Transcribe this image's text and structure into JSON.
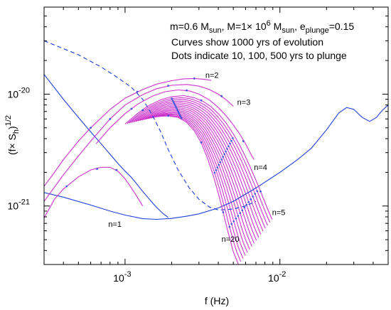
{
  "chart_data": {
    "type": "line",
    "scale": {
      "x": "log",
      "y": "log"
    },
    "xlim": [
      0.0003,
      0.05
    ],
    "ylim": [
      3e-22,
      6e-20
    ],
    "xlabel": "f (Hz)",
    "ylabel": "(f× S_h)^{1/2}",
    "x_ticks": [
      {
        "value": 0.001,
        "label": "10",
        "exponent": "-3"
      },
      {
        "value": 0.01,
        "label": "10",
        "exponent": "-2"
      }
    ],
    "y_ticks": [
      {
        "value": 1e-21,
        "label": "10",
        "exponent": "-21"
      },
      {
        "value": 1e-20,
        "label": "10",
        "exponent": "-20"
      }
    ],
    "annotations": [
      {
        "text": "m=0.6 M",
        "sub": "sun",
        "text2": ",  M=1× 10",
        "sup": "6",
        "text3": " M",
        "sub2": "sun",
        "text4": ",  e",
        "sub3": "plunge",
        "text5": "=0.15"
      },
      {
        "text": "Curves show 1000 yrs of evolution"
      },
      {
        "text": "Dots indicate 10, 100, 500 yrs to plunge"
      }
    ],
    "harmonic_labels": [
      {
        "text": "n=1",
        "x": 0.00078,
        "y": 6.5e-22
      },
      {
        "text": "n=2",
        "x": 0.0033,
        "y": 1.4e-20
      },
      {
        "text": "n=3",
        "x": 0.0053,
        "y": 8e-21
      },
      {
        "text": "n=4",
        "x": 0.0068,
        "y": 2.1e-21
      },
      {
        "text": "n=5",
        "x": 0.0089,
        "y": 8.3e-22
      },
      {
        "text": "n=20",
        "x": 0.0042,
        "y": 4.8e-22
      }
    ],
    "series": [
      {
        "role": "noise-total",
        "color": "#1f3fdc",
        "dash": "solid",
        "points": [
          [
            0.0003,
            1.32e-21
          ],
          [
            0.0004,
            1.2e-21
          ],
          [
            0.0006,
            1.02e-21
          ],
          [
            0.0008,
            9e-22
          ],
          [
            0.001,
            8.3e-22
          ],
          [
            0.0013,
            7.7e-22
          ],
          [
            0.0016,
            7.6e-22
          ],
          [
            0.002,
            7.75e-22
          ],
          [
            0.0025,
            8.1e-22
          ],
          [
            0.003,
            8.5e-22
          ],
          [
            0.004,
            9.6e-22
          ],
          [
            0.005,
            1.1e-21
          ],
          [
            0.007,
            1.45e-21
          ],
          [
            0.01,
            2e-21
          ],
          [
            0.013,
            2.6e-21
          ],
          [
            0.016,
            3.3e-21
          ],
          [
            0.02,
            4.8e-21
          ],
          [
            0.024,
            6.8e-21
          ],
          [
            0.027,
            7.6e-21
          ],
          [
            0.03,
            7.3e-21
          ],
          [
            0.034,
            6.2e-21
          ],
          [
            0.038,
            5.7e-21
          ],
          [
            0.042,
            6.2e-21
          ],
          [
            0.046,
            7.2e-21
          ],
          [
            0.05,
            8e-21
          ]
        ]
      },
      {
        "role": "noise-confusion",
        "color": "#1f3fdc",
        "dash": "solid",
        "points": [
          [
            0.0003,
            1.5e-20
          ],
          [
            0.0004,
            9e-21
          ],
          [
            0.0005,
            6.2e-21
          ],
          [
            0.0006,
            4.6e-21
          ],
          [
            0.0007,
            3.6e-21
          ],
          [
            0.0008,
            2.9e-21
          ],
          [
            0.0009,
            2.4e-21
          ],
          [
            0.001,
            2.05e-21
          ],
          [
            0.0011,
            1.8e-21
          ],
          [
            0.0012,
            1.55e-21
          ],
          [
            0.0013,
            1.35e-21
          ],
          [
            0.0014,
            1.2e-21
          ],
          [
            0.0015,
            1.07e-21
          ],
          [
            0.0016,
            9.7e-22
          ],
          [
            0.00175,
            8.6e-22
          ],
          [
            0.0019,
            7.9e-22
          ]
        ]
      },
      {
        "role": "noise-dashed",
        "color": "#1f3fdc",
        "dash": "dashed",
        "points": [
          [
            0.0003,
            3e-20
          ],
          [
            0.0005,
            2.25e-20
          ],
          [
            0.0007,
            1.75e-20
          ],
          [
            0.0009,
            1.4e-20
          ],
          [
            0.0011,
            1.15e-20
          ],
          [
            0.0013,
            9e-21
          ],
          [
            0.0015,
            6.5e-21
          ],
          [
            0.0017,
            4.6e-21
          ],
          [
            0.0019,
            3.2e-21
          ],
          [
            0.0022,
            2.1e-21
          ],
          [
            0.0026,
            1.45e-21
          ],
          [
            0.003,
            1.15e-21
          ],
          [
            0.0035,
            9.8e-22
          ],
          [
            0.004,
            9.2e-22
          ],
          [
            0.005,
            9.4e-22
          ],
          [
            0.006,
            1e-21
          ],
          [
            0.007,
            1.1e-21
          ]
        ]
      },
      {
        "role": "harmonic",
        "n": 1,
        "color": "#cc33cc",
        "dash": "solid",
        "points": [
          [
            0.0003,
            7.8e-22
          ],
          [
            0.00035,
            1.15e-21
          ],
          [
            0.0004,
            1.42e-21
          ],
          [
            0.0005,
            1.82e-21
          ],
          [
            0.0006,
            2.1e-21
          ],
          [
            0.0007,
            2.22e-21
          ],
          [
            0.0008,
            2.22e-21
          ],
          [
            0.0009,
            2.05e-21
          ],
          [
            0.001,
            1.75e-21
          ],
          [
            0.0011,
            1.45e-21
          ],
          [
            0.0012,
            1.2e-21
          ],
          [
            0.0013,
            1e-21
          ]
        ],
        "dots": [
          [
            0.00066,
            2.15e-21
          ],
          [
            0.00042,
            1.5e-21
          ],
          [
            0.00088,
            2.1e-21
          ]
        ]
      },
      {
        "role": "harmonic",
        "n": 2,
        "color": "#cc33cc",
        "dash": "solid",
        "points": [
          [
            0.0003,
            1.5e-21
          ],
          [
            0.00035,
            2e-21
          ],
          [
            0.0004,
            2.6e-21
          ],
          [
            0.0005,
            3.8e-21
          ],
          [
            0.0006,
            5e-21
          ],
          [
            0.0008,
            7.3e-21
          ],
          [
            0.001,
            9.2e-21
          ],
          [
            0.0013,
            1.1e-20
          ],
          [
            0.0016,
            1.23e-20
          ],
          [
            0.002,
            1.32e-20
          ],
          [
            0.0024,
            1.37e-20
          ],
          [
            0.0028,
            1.38e-20
          ],
          [
            0.0032,
            1.36e-20
          ],
          [
            0.0036,
            1.33e-20
          ]
        ],
        "dots": [
          [
            0.0006,
            5e-21
          ],
          [
            0.0012,
            1.05e-20
          ],
          [
            0.0028,
            1.38e-20
          ]
        ]
      },
      {
        "role": "harmonic",
        "n": 3,
        "color": "#cc33cc",
        "dash": "solid",
        "points": [
          [
            0.0003,
            1.1e-21
          ],
          [
            0.0004,
            1.9e-21
          ],
          [
            0.0005,
            2.8e-21
          ],
          [
            0.0006,
            3.8e-21
          ],
          [
            0.0008,
            6e-21
          ],
          [
            0.001,
            8e-21
          ],
          [
            0.0013,
            9.9e-21
          ],
          [
            0.0016,
            1.12e-20
          ],
          [
            0.002,
            1.2e-20
          ],
          [
            0.0025,
            1.22e-20
          ],
          [
            0.003,
            1.18e-20
          ],
          [
            0.0035,
            1.1e-20
          ],
          [
            0.004,
            1e-20
          ],
          [
            0.0045,
            8.9e-21
          ],
          [
            0.005,
            7.8e-21
          ]
        ],
        "dots": [
          [
            0.0008,
            6e-21
          ],
          [
            0.0019,
            1.19e-20
          ],
          [
            0.0042,
            9.6e-21
          ]
        ]
      },
      {
        "role": "harmonic",
        "n": 4,
        "color": "#cc33cc",
        "dash": "solid",
        "points": [
          [
            0.00065,
            3.6e-21
          ],
          [
            0.0008,
            5e-21
          ],
          [
            0.001,
            6.7e-21
          ],
          [
            0.0012,
            8.1e-21
          ],
          [
            0.0015,
            9.6e-21
          ],
          [
            0.0018,
            1.05e-20
          ],
          [
            0.0022,
            1.09e-20
          ],
          [
            0.0026,
            1.07e-20
          ],
          [
            0.003,
            1e-20
          ],
          [
            0.0035,
            8.9e-21
          ],
          [
            0.004,
            7.6e-21
          ],
          [
            0.0045,
            6.4e-21
          ],
          [
            0.005,
            5.3e-21
          ],
          [
            0.0055,
            4.4e-21
          ],
          [
            0.006,
            3.6e-21
          ],
          [
            0.0065,
            2.9e-21
          ],
          [
            0.0068,
            2.6e-21
          ]
        ],
        "dots": [
          [
            0.0011,
            7.4e-21
          ],
          [
            0.0025,
            1.08e-20
          ],
          [
            0.0058,
            3.8e-21
          ]
        ]
      },
      {
        "role": "harmonic",
        "n": 5,
        "color": "#cc33cc",
        "dash": "solid",
        "points": [
          [
            0.001,
            5.4e-21
          ],
          [
            0.0012,
            6.7e-21
          ],
          [
            0.0014,
            7.8e-21
          ],
          [
            0.0017,
            8.9e-21
          ],
          [
            0.002,
            9.5e-21
          ],
          [
            0.0024,
            9.7e-21
          ],
          [
            0.0028,
            9.3e-21
          ],
          [
            0.0032,
            8.6e-21
          ],
          [
            0.0036,
            7.7e-21
          ],
          [
            0.004,
            6.7e-21
          ],
          [
            0.0045,
            5.5e-21
          ],
          [
            0.005,
            4.4e-21
          ],
          [
            0.0055,
            3.5e-21
          ],
          [
            0.006,
            2.75e-21
          ],
          [
            0.0065,
            2.15e-21
          ],
          [
            0.007,
            1.7e-21
          ],
          [
            0.0075,
            1.35e-21
          ],
          [
            0.008,
            1.08e-21
          ],
          [
            0.0085,
            8.8e-22
          ],
          [
            0.0089,
            7.6e-22
          ]
        ],
        "dots": [
          [
            0.0013,
            7.2e-21
          ],
          [
            0.0031,
            8.8e-21
          ],
          [
            0.0075,
            1.35e-21
          ]
        ]
      },
      {
        "role": "harmonic",
        "n": 20,
        "color": "#cc33cc",
        "dash": "solid",
        "points": [
          [
            0.0016,
            6.3e-21
          ],
          [
            0.0019,
            6.4e-21
          ],
          [
            0.0022,
            6.2e-21
          ],
          [
            0.0025,
            5.6e-21
          ],
          [
            0.0028,
            4.7e-21
          ],
          [
            0.0031,
            3.7e-21
          ],
          [
            0.0034,
            2.7e-21
          ],
          [
            0.0037,
            1.9e-21
          ],
          [
            0.004,
            1.3e-21
          ],
          [
            0.0043,
            8.8e-22
          ],
          [
            0.0046,
            6e-22
          ],
          [
            0.005,
            3.9e-22
          ],
          [
            0.0054,
            3e-22
          ]
        ],
        "dots": [
          [
            0.0019,
            6.4e-21
          ],
          [
            0.0031,
            3.7e-21
          ],
          [
            0.0043,
            8.8e-22
          ]
        ]
      }
    ],
    "harmonic_fan": {
      "from_n": 6,
      "to_n": 19,
      "color": "#cc33cc"
    }
  }
}
